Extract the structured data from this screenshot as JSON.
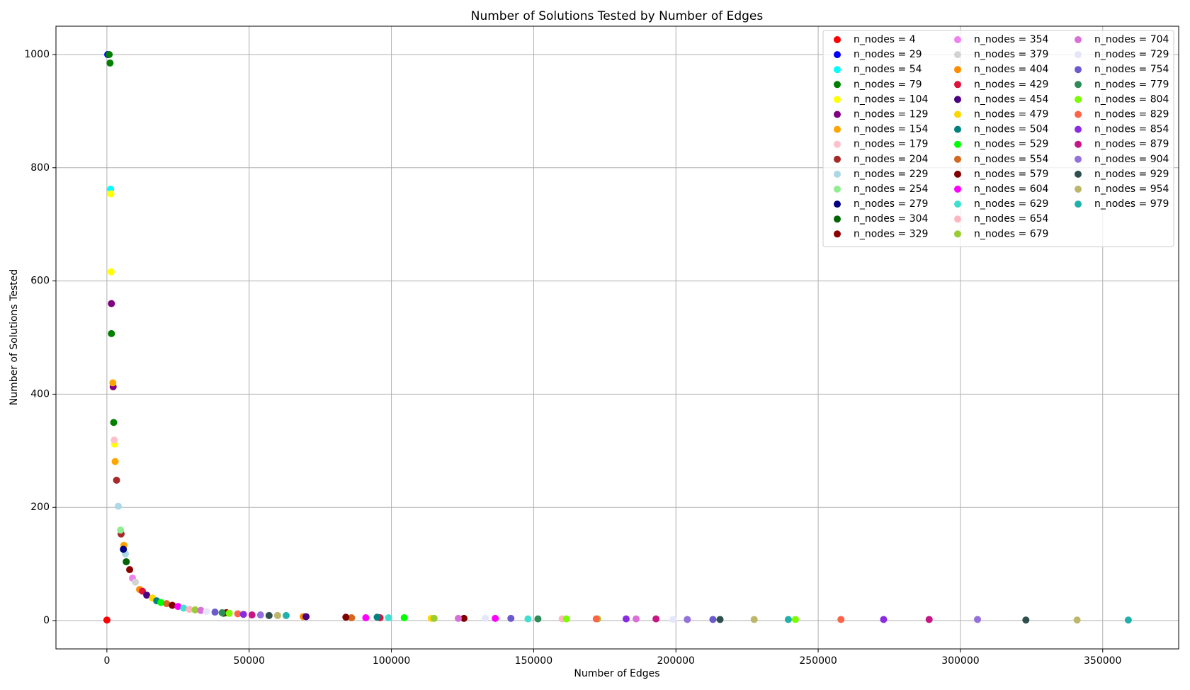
{
  "chart_data": {
    "type": "scatter",
    "title": "Number of Solutions Tested by Number of Edges",
    "x_label": "Number of Edges",
    "y_label": "Number of Solutions Tested",
    "xlim": [
      -17900,
      376700
    ],
    "ylim": [
      -50,
      1050
    ],
    "xticks": [
      0,
      50000,
      100000,
      150000,
      200000,
      250000,
      300000,
      350000
    ],
    "yticks": [
      0,
      200,
      400,
      600,
      800,
      1000
    ],
    "grid": true,
    "legend": {
      "loc": "upper right",
      "columns": 3
    },
    "series": [
      {
        "name": "n_nodes = 4",
        "color": "#ff0000",
        "x": [
          6
        ],
        "values": [
          1
        ]
      },
      {
        "name": "n_nodes = 29",
        "color": "#0000ff",
        "x": [
          300
        ],
        "values": [
          1000
        ]
      },
      {
        "name": "n_nodes = 54",
        "color": "#00ffff",
        "x": [
          1300
        ],
        "values": [
          762
        ]
      },
      {
        "name": "n_nodes = 79",
        "color": "#008000",
        "x": [
          800,
          1100,
          1600,
          2400
        ],
        "values": [
          1000,
          985,
          507,
          350
        ]
      },
      {
        "name": "n_nodes = 104",
        "color": "#ffff00",
        "x": [
          1400,
          1500,
          2700
        ],
        "values": [
          754,
          616,
          312
        ]
      },
      {
        "name": "n_nodes = 129",
        "color": "#800080",
        "x": [
          1600,
          2200
        ],
        "values": [
          560,
          413
        ]
      },
      {
        "name": "n_nodes = 154",
        "color": "#ffa500",
        "x": [
          2100,
          2900,
          6000
        ],
        "values": [
          420,
          281,
          133
        ]
      },
      {
        "name": "n_nodes = 179",
        "color": "#ffc0cb",
        "x": [
          2600
        ],
        "values": [
          319
        ]
      },
      {
        "name": "n_nodes = 204",
        "color": "#a52a2a",
        "x": [
          3400,
          5000
        ],
        "values": [
          248,
          153
        ]
      },
      {
        "name": "n_nodes = 229",
        "color": "#add8e6",
        "x": [
          4000,
          6500
        ],
        "values": [
          202,
          118
        ]
      },
      {
        "name": "n_nodes = 254",
        "color": "#90ee90",
        "x": [
          4800
        ],
        "values": [
          160
        ]
      },
      {
        "name": "n_nodes = 279",
        "color": "#000080",
        "x": [
          5800
        ],
        "values": [
          126
        ]
      },
      {
        "name": "n_nodes = 304",
        "color": "#006400",
        "x": [
          6800,
          41000
        ],
        "values": [
          104,
          13
        ]
      },
      {
        "name": "n_nodes = 329",
        "color": "#8b0000",
        "x": [
          8000,
          42000
        ],
        "values": [
          90,
          14
        ]
      },
      {
        "name": "n_nodes = 354",
        "color": "#ee82ee",
        "x": [
          9000
        ],
        "values": [
          75
        ]
      },
      {
        "name": "n_nodes = 379",
        "color": "#d3d3d3",
        "x": [
          10000,
          60000
        ],
        "values": [
          68,
          9
        ]
      },
      {
        "name": "n_nodes = 404",
        "color": "#ff8c00",
        "x": [
          11500,
          69000
        ],
        "values": [
          55,
          7
        ]
      },
      {
        "name": "n_nodes = 429",
        "color": "#dc143c",
        "x": [
          12500,
          96000
        ],
        "values": [
          52,
          5
        ]
      },
      {
        "name": "n_nodes = 454",
        "color": "#4b0082",
        "x": [
          14000,
          70000
        ],
        "values": [
          45,
          7
        ]
      },
      {
        "name": "n_nodes = 479",
        "color": "#ffd700",
        "x": [
          16000,
          114000
        ],
        "values": [
          40,
          4
        ]
      },
      {
        "name": "n_nodes = 504",
        "color": "#008080",
        "x": [
          17500,
          95000
        ],
        "values": [
          35,
          6
        ]
      },
      {
        "name": "n_nodes = 529",
        "color": "#00ff00",
        "x": [
          19000,
          104500
        ],
        "values": [
          32,
          5
        ]
      },
      {
        "name": "n_nodes = 554",
        "color": "#d2691e",
        "x": [
          21000,
          86000
        ],
        "values": [
          30,
          5
        ]
      },
      {
        "name": "n_nodes = 579",
        "color": "#800000",
        "x": [
          23000,
          84000,
          125500
        ],
        "values": [
          27,
          6,
          4
        ]
      },
      {
        "name": "n_nodes = 604",
        "color": "#ff00ff",
        "x": [
          25000,
          91000,
          136500
        ],
        "values": [
          25,
          5,
          4
        ]
      },
      {
        "name": "n_nodes = 629",
        "color": "#40e0d0",
        "x": [
          27000,
          99000,
          148000
        ],
        "values": [
          22,
          5,
          3
        ]
      },
      {
        "name": "n_nodes = 654",
        "color": "#ffb6c1",
        "x": [
          29000,
          160000
        ],
        "values": [
          20,
          3
        ]
      },
      {
        "name": "n_nodes = 679",
        "color": "#9acd32",
        "x": [
          31000,
          115000,
          172500
        ],
        "values": [
          19,
          4,
          3
        ]
      },
      {
        "name": "n_nodes = 704",
        "color": "#da70d6",
        "x": [
          33000,
          123500,
          186000
        ],
        "values": [
          18,
          4,
          3
        ]
      },
      {
        "name": "n_nodes = 729",
        "color": "#e6e6fa",
        "x": [
          35000,
          133000,
          199000
        ],
        "values": [
          16,
          4,
          2
        ]
      },
      {
        "name": "n_nodes = 754",
        "color": "#6a5acd",
        "x": [
          38000,
          142000,
          213000
        ],
        "values": [
          15,
          4,
          2
        ]
      },
      {
        "name": "n_nodes = 779",
        "color": "#2e8b57",
        "x": [
          40500,
          151500
        ],
        "values": [
          14,
          3
        ]
      },
      {
        "name": "n_nodes = 804",
        "color": "#7cfc00",
        "x": [
          43000,
          161500,
          242000
        ],
        "values": [
          13,
          3,
          2
        ]
      },
      {
        "name": "n_nodes = 829",
        "color": "#ff6347",
        "x": [
          46000,
          172000,
          258000
        ],
        "values": [
          12,
          3,
          2
        ]
      },
      {
        "name": "n_nodes = 854",
        "color": "#8a2be2",
        "x": [
          48000,
          182500,
          273000
        ],
        "values": [
          11,
          3,
          2
        ]
      },
      {
        "name": "n_nodes = 879",
        "color": "#c71585",
        "x": [
          51000,
          193000,
          289000
        ],
        "values": [
          10,
          3,
          2
        ]
      },
      {
        "name": "n_nodes = 904",
        "color": "#9370db",
        "x": [
          54000,
          204000,
          306000
        ],
        "values": [
          10,
          2,
          2
        ]
      },
      {
        "name": "n_nodes = 929",
        "color": "#2f4f4f",
        "x": [
          57000,
          215500,
          323000
        ],
        "values": [
          9,
          2,
          1
        ]
      },
      {
        "name": "n_nodes = 954",
        "color": "#bdb76b",
        "x": [
          60000,
          227500,
          341000
        ],
        "values": [
          9,
          2,
          1
        ]
      },
      {
        "name": "n_nodes = 979",
        "color": "#20b2aa",
        "x": [
          63000,
          239500,
          359000
        ],
        "values": [
          9,
          2,
          1
        ]
      }
    ]
  }
}
